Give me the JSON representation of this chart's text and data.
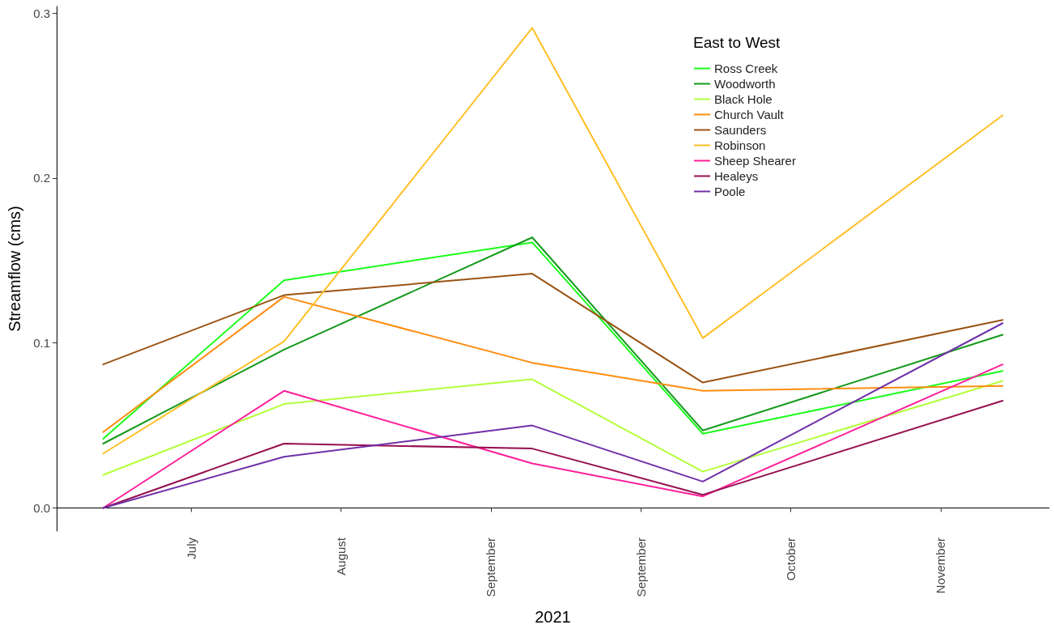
{
  "chart_data": {
    "type": "line",
    "xlabel": "2021",
    "ylabel": "Streamflow (cms)",
    "legend_title": "East to West",
    "legend": "top right",
    "grid": false,
    "marker": "none",
    "line_style": "solid",
    "x": [
      "2021-06-18",
      "2021-07-23",
      "2021-09-09",
      "2021-10-12",
      "2021-12-09"
    ],
    "xlim": [
      "2021-06-09",
      "2021-12-18"
    ],
    "xticks": [
      {
        "value": "2021-07-05",
        "label": "July"
      },
      {
        "value": "2021-08-03",
        "label": "August"
      },
      {
        "value": "2021-09-01",
        "label": "September"
      },
      {
        "value": "2021-09-30",
        "label": "September"
      },
      {
        "value": "2021-10-29",
        "label": "October"
      },
      {
        "value": "2021-11-27",
        "label": "November"
      }
    ],
    "ylim": [
      -0.014,
      0.304
    ],
    "yticks": [
      {
        "value": 0,
        "label": "0.0"
      },
      0.1,
      0.2,
      0.3
    ],
    "series": [
      {
        "name": "Ross Creek",
        "color": "#1aff1a",
        "values": [
          0.042,
          0.138,
          0.161,
          0.045,
          0.083
        ]
      },
      {
        "name": "Woodworth",
        "color": "#14991a",
        "values": [
          0.039,
          0.096,
          0.164,
          0.047,
          0.105
        ]
      },
      {
        "name": "Black Hole",
        "color": "#b3ff3a",
        "values": [
          0.02,
          0.063,
          0.078,
          0.022,
          0.077
        ]
      },
      {
        "name": "Church Vault",
        "color": "#ff8c0f",
        "values": [
          0.046,
          0.128,
          0.088,
          0.071,
          0.074
        ]
      },
      {
        "name": "Saunders",
        "color": "#9a5414",
        "values": [
          0.087,
          0.129,
          0.142,
          0.076,
          0.114
        ]
      },
      {
        "name": "Robinson",
        "color": "#ffbf26",
        "values": [
          0.033,
          0.101,
          0.291,
          0.103,
          0.238
        ]
      },
      {
        "name": "Sheep Shearer",
        "color": "#ff1f9a",
        "values": [
          0,
          0.071,
          0.027,
          0.007,
          0.087
        ]
      },
      {
        "name": "Healeys",
        "color": "#960f50",
        "values": [
          0,
          0.039,
          0.036,
          0.008,
          0.065
        ]
      },
      {
        "name": "Poole",
        "color": "#7030a8",
        "values": [
          0,
          0.031,
          0.05,
          0.016,
          0.112
        ]
      }
    ]
  }
}
